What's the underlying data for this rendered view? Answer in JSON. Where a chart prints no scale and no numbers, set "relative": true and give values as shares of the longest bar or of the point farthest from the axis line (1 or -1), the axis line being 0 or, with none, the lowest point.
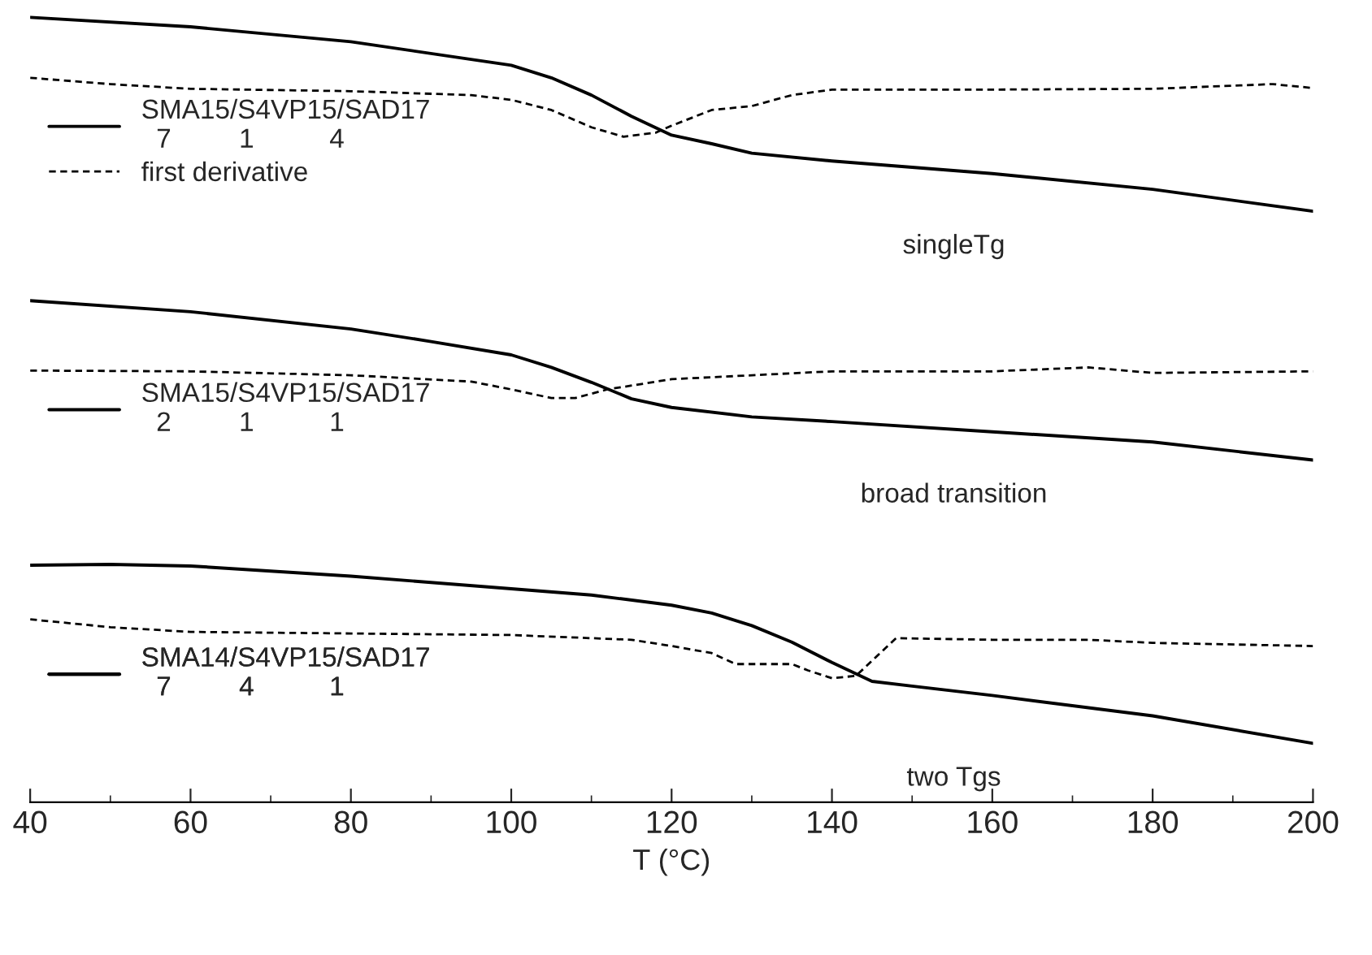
{
  "chart_data": {
    "type": "line",
    "relative": true,
    "xlabel": "T (°C)",
    "xlim": [
      40,
      200
    ],
    "xticks": [
      40,
      60,
      80,
      100,
      120,
      140,
      160,
      180,
      200
    ],
    "grid": false,
    "legend": "left",
    "line_style": "solid",
    "marker": "none",
    "series": [
      {
        "name": "SMA15/S4VP15/SAD17\n  7         1          4",
        "color": "#000000",
        "x": [
          40,
          60,
          80,
          100,
          105,
          110,
          115,
          120,
          125,
          130,
          140,
          160,
          180,
          200
        ],
        "values": [
          1.0,
          0.988,
          0.969,
          0.939,
          0.923,
          0.901,
          0.874,
          0.85,
          0.839,
          0.827,
          0.817,
          0.801,
          0.781,
          0.753
        ]
      },
      {
        "name": "first derivative",
        "color": "#000000",
        "line_style": "dashed",
        "x": [
          40,
          50,
          60,
          80,
          95,
          100,
          105,
          110,
          114,
          118,
          120,
          125,
          130,
          135,
          140,
          160,
          180,
          195,
          200
        ],
        "values": [
          0.923,
          0.915,
          0.909,
          0.906,
          0.901,
          0.895,
          0.882,
          0.86,
          0.848,
          0.853,
          0.862,
          0.882,
          0.887,
          0.901,
          0.908,
          0.908,
          0.909,
          0.915,
          0.91
        ]
      },
      {
        "name": "SMA15/S4VP15/SAD17\n  2         1          1",
        "color": "#000000",
        "x": [
          40,
          60,
          80,
          90,
          100,
          105,
          110,
          115,
          120,
          130,
          140,
          160,
          180,
          200
        ],
        "values": [
          0.639,
          0.625,
          0.603,
          0.587,
          0.57,
          0.554,
          0.535,
          0.514,
          0.503,
          0.491,
          0.485,
          0.472,
          0.459,
          0.436
        ]
      },
      {
        "color": "#000000",
        "line_style": "dashed",
        "x": [
          40,
          60,
          80,
          95,
          100,
          105,
          108,
          112,
          120,
          140,
          160,
          172,
          180,
          200
        ],
        "values": [
          0.55,
          0.549,
          0.544,
          0.536,
          0.526,
          0.515,
          0.515,
          0.526,
          0.539,
          0.549,
          0.549,
          0.554,
          0.547,
          0.549
        ]
      },
      {
        "name": "SMA14/S4VP15/SAD17\n  7         4          1",
        "color": "#000000",
        "x": [
          40,
          50,
          60,
          80,
          100,
          110,
          120,
          125,
          130,
          135,
          140,
          145,
          150,
          160,
          180,
          200
        ],
        "values": [
          0.302,
          0.303,
          0.301,
          0.288,
          0.272,
          0.264,
          0.251,
          0.241,
          0.225,
          0.204,
          0.178,
          0.154,
          0.148,
          0.136,
          0.11,
          0.075
        ]
      },
      {
        "color": "#000000",
        "line_style": "dashed",
        "x": [
          40,
          50,
          60,
          80,
          100,
          115,
          120,
          125,
          128,
          135,
          137,
          140,
          143,
          148,
          160,
          172,
          180,
          200
        ],
        "values": [
          0.233,
          0.223,
          0.217,
          0.215,
          0.213,
          0.207,
          0.199,
          0.19,
          0.176,
          0.176,
          0.168,
          0.158,
          0.161,
          0.209,
          0.207,
          0.207,
          0.203,
          0.199
        ]
      }
    ],
    "annotations": [
      "singleTg",
      "broad transition",
      "two Tgs"
    ]
  }
}
